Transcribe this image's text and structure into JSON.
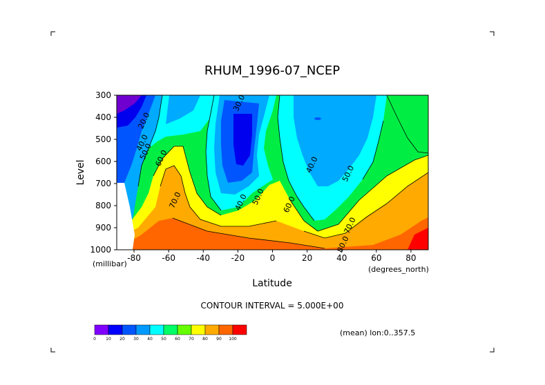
{
  "chart_data": {
    "type": "contour",
    "title": "RHUM_1996-07_NCEP",
    "xlabel": "Latitude",
    "ylabel": "Level",
    "x_unit": "(degrees_north)",
    "y_unit": "(millibar)",
    "xlim": [
      -90,
      90
    ],
    "ylim": [
      1000,
      300
    ],
    "x_ticks": [
      -80,
      -60,
      -40,
      -20,
      0,
      20,
      40,
      60,
      80
    ],
    "y_ticks": [
      300,
      400,
      500,
      600,
      700,
      800,
      900,
      1000
    ],
    "x_tick_labels": [
      "-80",
      "-60",
      "-40",
      "-20",
      "0",
      "20",
      "40",
      "60",
      "80"
    ],
    "y_tick_labels": [
      "300",
      "400",
      "500",
      "600",
      "700",
      "800",
      "900",
      "1000"
    ],
    "contour_interval_text": "CONTOUR INTERVAL = 5.000E+00",
    "mean_text": "(mean) lon:0..357.5",
    "contour_labels": [
      {
        "text": "30.0",
        "lat": -18,
        "lev": 340
      },
      {
        "text": "20.0",
        "lat": -73,
        "lev": 420
      },
      {
        "text": "40.0",
        "lat": -74,
        "lev": 520
      },
      {
        "text": "50.0",
        "lat": -72,
        "lev": 560
      },
      {
        "text": "60.0",
        "lat": -63,
        "lev": 590
      },
      {
        "text": "70.0",
        "lat": -55,
        "lev": 780
      },
      {
        "text": "40.0",
        "lat": -17,
        "lev": 790
      },
      {
        "text": "50.0",
        "lat": -7,
        "lev": 765
      },
      {
        "text": "60.0",
        "lat": 11,
        "lev": 800
      },
      {
        "text": "40.0",
        "lat": 24,
        "lev": 620
      },
      {
        "text": "50.0",
        "lat": 45,
        "lev": 660
      },
      {
        "text": "70.0",
        "lat": 46,
        "lev": 895
      },
      {
        "text": "80.0",
        "lat": 42,
        "lev": 980
      }
    ],
    "colorbar": {
      "labels": [
        "0",
        "10",
        "20",
        "30",
        "40",
        "50",
        "60",
        "70",
        "80",
        "90",
        "100"
      ],
      "colors": [
        "#8000ff",
        "#0000ff",
        "#0055ff",
        "#0099ff",
        "#00ffff",
        "#00ff66",
        "#66ff00",
        "#ffff00",
        "#ffaa00",
        "#ff6600",
        "#ff0000"
      ]
    }
  }
}
